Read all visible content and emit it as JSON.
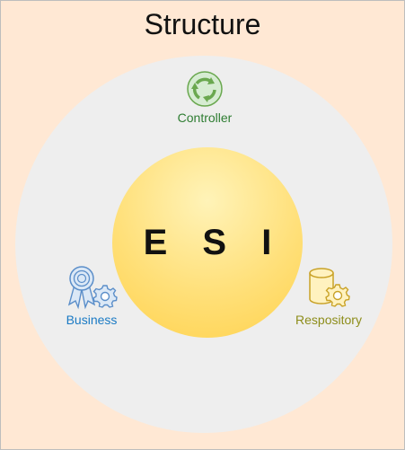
{
  "title": "Structure",
  "core": {
    "label": "E S I"
  },
  "nodes": {
    "controller": {
      "label": "Controller",
      "icon": "cycle-arrows-icon",
      "color": "#2e7d32"
    },
    "business": {
      "label": "Business",
      "icon": "award-gear-icon",
      "color": "#1a7ac4"
    },
    "repository": {
      "label": "Respository",
      "icon": "database-gear-icon",
      "color": "#8d8d1a"
    }
  },
  "colors": {
    "background": "#ffe8d4",
    "outer_ring": "#eeeeee",
    "core": "#ffd24d"
  }
}
